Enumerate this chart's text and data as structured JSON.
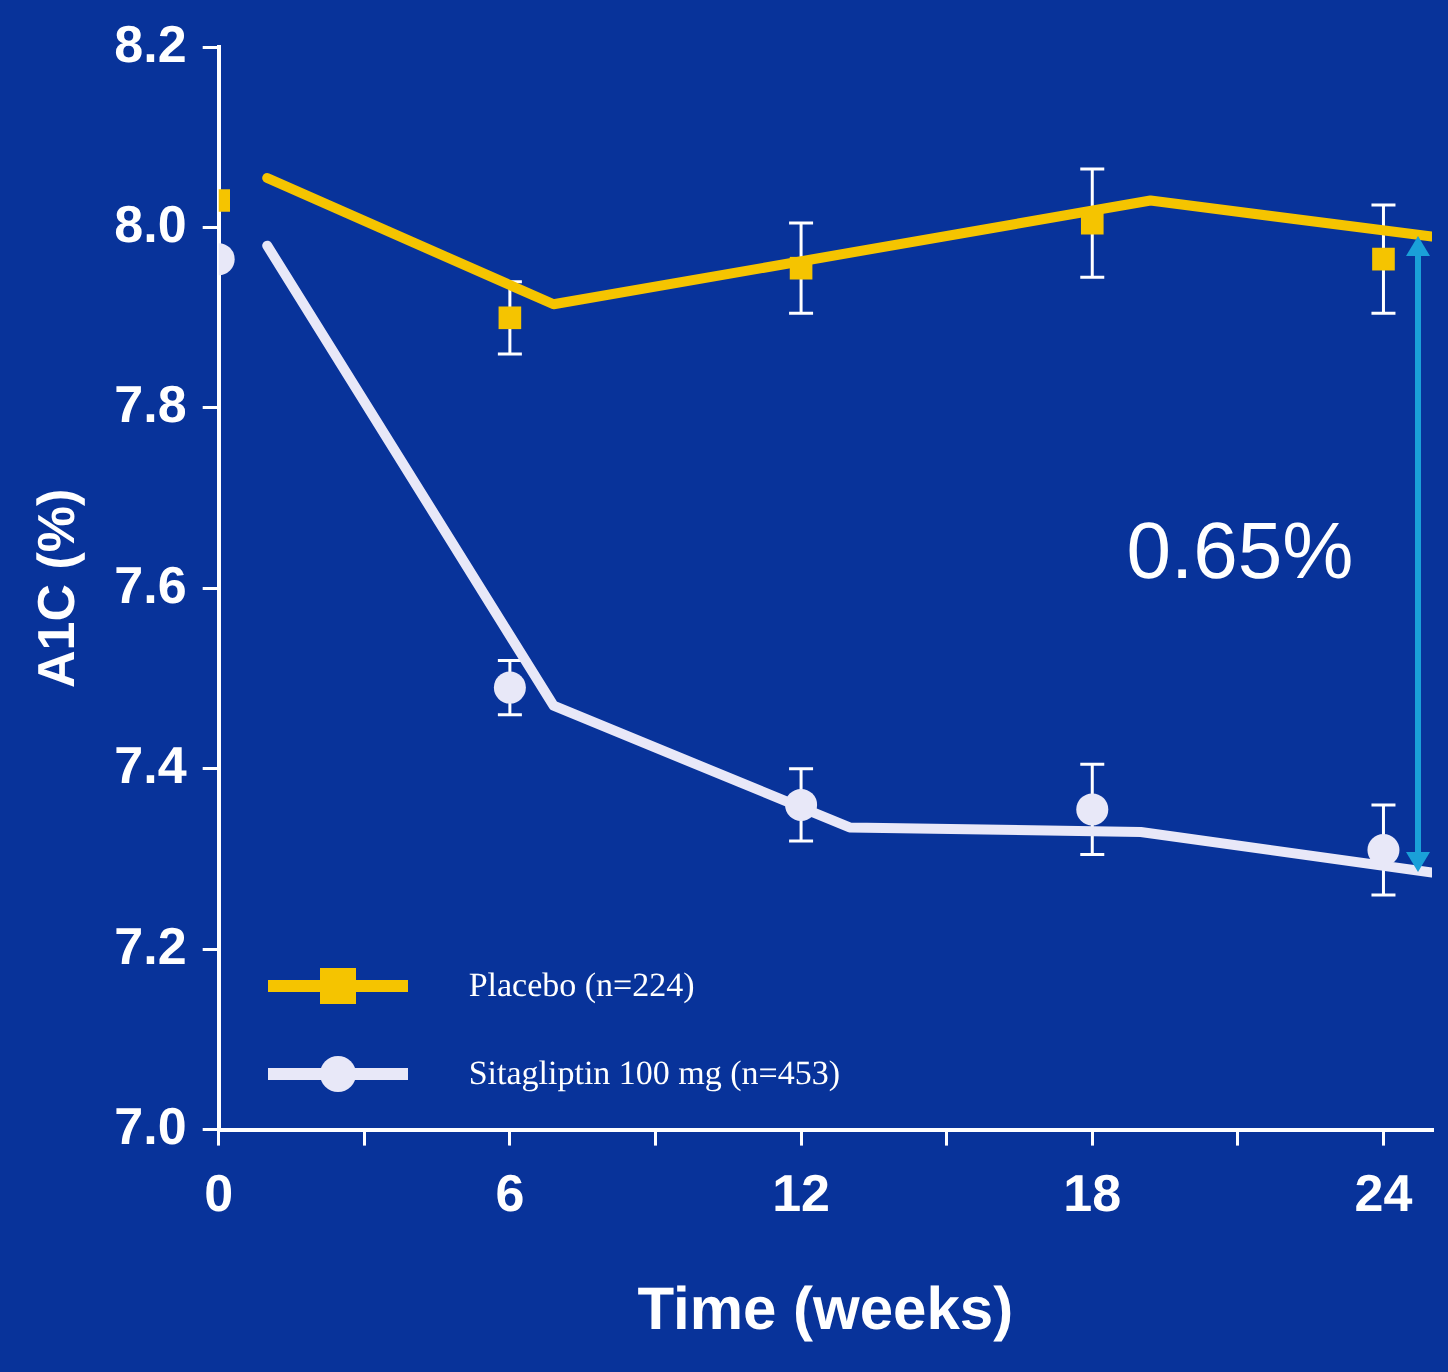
{
  "chart_data": {
    "type": "scatter",
    "xlabel": "Time (weeks)",
    "ylabel": "A1C (%)",
    "xlim": [
      0,
      25
    ],
    "xticks": [
      0,
      {
        "value": 3,
        "label": null
      },
      6,
      {
        "value": 9,
        "label": null
      },
      12,
      {
        "value": 15,
        "label": null
      },
      18,
      {
        "value": 21,
        "label": null
      },
      24
    ],
    "ylim": [
      7.0,
      8.2
    ],
    "yticks": [
      {
        "value": 7.0,
        "label": "7.0"
      },
      7.2,
      7.4,
      7.6,
      7.8,
      {
        "value": 8.0,
        "label": "8.0"
      },
      8.2
    ],
    "legend": "bottom left",
    "series": [
      {
        "name": "Placebo (n=224)",
        "color": "#f5c400",
        "marker": "square",
        "x": [
          0,
          6,
          12,
          18,
          24
        ],
        "values": [
          8.03,
          7.9,
          7.955,
          8.005,
          7.965
        ],
        "errors": [
          null,
          0.04,
          0.05,
          0.06,
          0.06
        ]
      },
      {
        "name": "Sitagliptin 100 mg (n=453)",
        "color": "#e8e8f8",
        "marker": "circle",
        "x": [
          0,
          6,
          12,
          18,
          24
        ],
        "values": [
          7.965,
          7.49,
          7.36,
          7.355,
          7.31
        ],
        "errors": [
          null,
          0.03,
          0.04,
          0.05,
          0.05
        ]
      },
      {
        "type": "line",
        "color": "#f5c400",
        "marker": "none",
        "x": [
          1,
          6.9,
          19.2,
          25
        ],
        "values": [
          8.055,
          7.915,
          8.03,
          7.99
        ]
      },
      {
        "type": "line",
        "color": "#e8e8f8",
        "marker": "none",
        "x": [
          1,
          6.9,
          13,
          19,
          25
        ],
        "values": [
          7.98,
          7.47,
          7.335,
          7.33,
          7.285
        ]
      }
    ],
    "annotations": [
      "0.65%"
    ]
  }
}
